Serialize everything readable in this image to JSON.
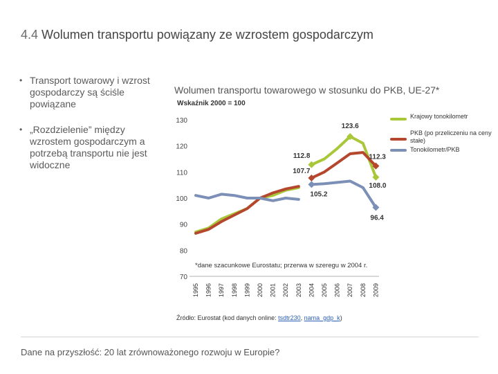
{
  "slide": {
    "title_number": "4.4",
    "title_text": "Wolumen transportu powiązany ze wzrostem gospodarczym",
    "bullets": [
      "Transport towarowy i wzrost gospodarczy są ściśle powiązane",
      "„Rozdzielenie” między wzrostem gospodarczym a potrzebą transportu nie jest widoczne"
    ],
    "bullet_glyph": "•",
    "footer": "Dane na przyszłość: 20 lat zrównoważonego rozwoju w Europie?"
  },
  "chart_data": {
    "type": "line",
    "title": "Wolumen transportu towarowego w stosunku do PKB, UE-27*",
    "subtitle": "Wskaźnik 2000 = 100",
    "ylim": [
      70,
      130
    ],
    "yticks": [
      70,
      80,
      90,
      100,
      110,
      120,
      130
    ],
    "categories": [
      "1995",
      "1996",
      "1997",
      "1998",
      "1999",
      "2000",
      "2001",
      "2002",
      "2003",
      "2004",
      "2005",
      "2006",
      "2007",
      "2008",
      "2009"
    ],
    "series": [
      {
        "name": "Krajowy tonokilometr",
        "color": "#a8c83a",
        "segments": [
          {
            "years": [
              1995,
              1996,
              1997,
              1998,
              1999,
              2000,
              2001,
              2002,
              2003
            ],
            "values": [
              87,
              88.5,
              92,
              94,
              96,
              100,
              101,
              103,
              104
            ]
          },
          {
            "years": [
              2004,
              2005,
              2006,
              2007,
              2008,
              2009
            ],
            "values": [
              112.8,
              115,
              119,
              123.6,
              121,
              108.0
            ]
          }
        ]
      },
      {
        "name": "PKB (po przeliczeniu na ceny stałe)",
        "color": "#b5472e",
        "segments": [
          {
            "years": [
              1995,
              1996,
              1997,
              1998,
              1999,
              2000,
              2001,
              2002,
              2003
            ],
            "values": [
              86.5,
              88,
              91,
              93.5,
              96,
              100,
              102,
              103.5,
              104.5
            ]
          },
          {
            "years": [
              2004,
              2005,
              2006,
              2007,
              2008,
              2009
            ],
            "values": [
              107.7,
              110,
              113.5,
              117,
              117.5,
              112.3
            ]
          }
        ]
      },
      {
        "name": "Tonokilometr/PKB",
        "color": "#7b8fb7",
        "segments": [
          {
            "years": [
              1995,
              1996,
              1997,
              1998,
              1999,
              2000,
              2001,
              2002,
              2003
            ],
            "values": [
              101,
              100,
              101.5,
              101,
              100,
              100,
              99,
              100,
              99.5
            ]
          },
          {
            "years": [
              2004,
              2005,
              2006,
              2007,
              2008,
              2009
            ],
            "values": [
              105.2,
              105.5,
              106,
              106.5,
              104,
              96.4
            ]
          }
        ]
      }
    ],
    "data_labels": [
      {
        "text": "123.6",
        "series": 0,
        "year": 2007
      },
      {
        "text": "112.8",
        "series": 0,
        "year": 2004
      },
      {
        "text": "108.0",
        "series": 0,
        "year": 2009
      },
      {
        "text": "112.3",
        "series": 1,
        "year": 2009
      },
      {
        "text": "107.7",
        "series": 1,
        "year": 2004
      },
      {
        "text": "105.2",
        "series": 2,
        "year": 2004
      },
      {
        "text": "96.4",
        "series": 2,
        "year": 2009
      }
    ],
    "legend": [
      "Krajowy tonokilometr",
      "PKB (po przeliczeniu na ceny stałe)",
      "Tonokilometr/PKB"
    ],
    "legend_position": "top-right",
    "note": "*dane szacunkowe Eurostatu; przerwa w szeregu w 2004 r.",
    "source_prefix": "Źródło: Eurostat (kod danych online: ",
    "source_link_1": "tsdtr230",
    "source_sep": ", ",
    "source_link_2": "nama_gdp_k",
    "source_suffix": ")"
  }
}
